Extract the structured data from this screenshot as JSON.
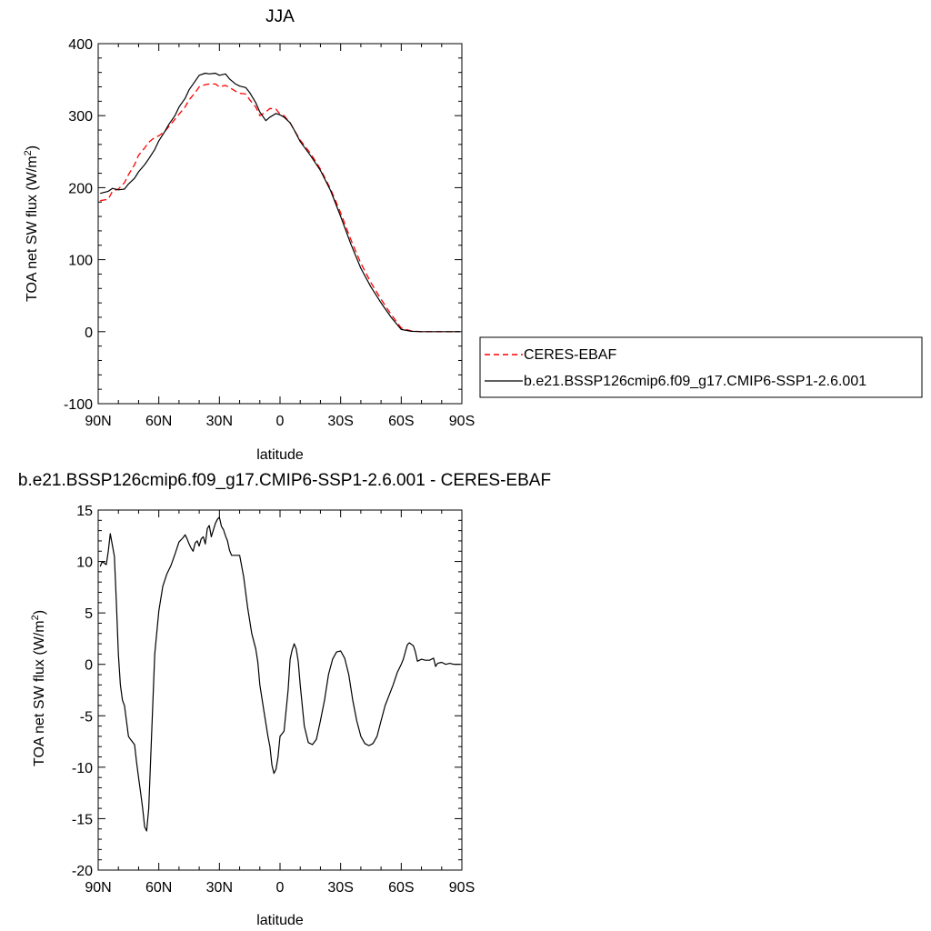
{
  "chart_data": [
    {
      "type": "line",
      "title": "JJA",
      "xlabel": "latitude",
      "ylabel": "TOA net SW flux (W/m",
      "ylabel_sup": "2",
      "ylabel_close": ")",
      "xlim": [
        90,
        -90
      ],
      "ylim": [
        -100,
        400
      ],
      "x_ticks": [
        90,
        60,
        30,
        0,
        -30,
        -60,
        -90
      ],
      "x_tick_labels": [
        "90N",
        "60N",
        "30N",
        "0",
        "30S",
        "60S",
        "90S"
      ],
      "y_ticks": [
        -100,
        0,
        100,
        200,
        300,
        400
      ],
      "y_tick_labels": [
        "-100",
        "0",
        "100",
        "200",
        "300",
        "400"
      ],
      "legend_position": "right",
      "series": [
        {
          "name": "CERES-EBAF",
          "color": "#ff0000",
          "dash": true,
          "x": [
            89,
            85,
            83,
            80,
            77,
            75,
            72,
            70,
            67,
            65,
            62,
            60,
            57,
            55,
            52,
            50,
            47,
            45,
            42,
            40,
            37,
            35,
            32,
            30,
            27,
            25,
            22,
            20,
            17,
            15,
            12,
            10,
            7,
            5,
            2,
            0,
            -2,
            -5,
            -7,
            -10,
            -15,
            -20,
            -25,
            -30,
            -35,
            -40,
            -45,
            -50,
            -55,
            -60,
            -65,
            -70,
            -75,
            -80,
            -85,
            -89
          ],
          "y": [
            182,
            184,
            195,
            198,
            207,
            218,
            232,
            245,
            255,
            263,
            270,
            272,
            278,
            285,
            295,
            302,
            312,
            322,
            332,
            340,
            343,
            344,
            344,
            340,
            342,
            339,
            334,
            331,
            330,
            322,
            312,
            300,
            305,
            310,
            309,
            302,
            300,
            290,
            280,
            266,
            248,
            226,
            198,
            165,
            128,
            95,
            68,
            45,
            24,
            5,
            1,
            0,
            0,
            0,
            0,
            0
          ]
        },
        {
          "name": "b.e21.BSSP126cmip6.f09_g17.CMIP6-SSP1-2.6.001",
          "color": "#000000",
          "dash": false,
          "x": [
            89,
            85,
            83,
            80,
            77,
            75,
            72,
            70,
            67,
            65,
            62,
            60,
            57,
            55,
            52,
            50,
            47,
            45,
            42,
            40,
            37,
            35,
            32,
            30,
            27,
            25,
            22,
            20,
            17,
            15,
            12,
            10,
            7,
            5,
            2,
            0,
            -2,
            -5,
            -7,
            -10,
            -15,
            -20,
            -25,
            -30,
            -35,
            -40,
            -45,
            -50,
            -55,
            -60,
            -65,
            -70,
            -75,
            -80,
            -85,
            -89
          ],
          "y": [
            192,
            195,
            199,
            197,
            198,
            205,
            213,
            222,
            232,
            240,
            253,
            265,
            278,
            288,
            300,
            312,
            324,
            336,
            348,
            356,
            359,
            358,
            359,
            356,
            358,
            351,
            344,
            341,
            339,
            332,
            318,
            305,
            293,
            298,
            303,
            301,
            298,
            290,
            280,
            264,
            245,
            224,
            196,
            160,
            122,
            88,
            62,
            40,
            20,
            3,
            0.5,
            0,
            0,
            0,
            0,
            0
          ]
        }
      ]
    },
    {
      "type": "line",
      "title": "b.e21.BSSP126cmip6.f09_g17.CMIP6-SSP1-2.6.001 - CERES-EBAF",
      "xlabel": "latitude",
      "ylabel": "TOA net SW flux (W/m",
      "ylabel_sup": "2",
      "ylabel_close": ")",
      "xlim": [
        90,
        -90
      ],
      "ylim": [
        -20,
        15
      ],
      "x_ticks": [
        90,
        60,
        30,
        0,
        -30,
        -60,
        -90
      ],
      "x_tick_labels": [
        "90N",
        "60N",
        "30N",
        "0",
        "30S",
        "60S",
        "90S"
      ],
      "y_ticks": [
        -20,
        -15,
        -10,
        -5,
        0,
        5,
        10,
        15
      ],
      "y_tick_labels": [
        "-20",
        "-15",
        "-10",
        "-5",
        "0",
        "5",
        "10",
        "15"
      ],
      "series": [
        {
          "color": "#000000",
          "x": [
            89,
            88,
            86,
            85,
            84,
            82,
            81,
            80,
            79,
            78,
            77,
            76,
            75,
            74,
            72,
            71,
            70,
            69,
            68,
            67,
            66,
            65,
            64,
            63,
            62,
            60,
            58,
            56,
            54,
            52,
            50,
            48,
            47,
            46,
            45,
            44,
            43,
            42,
            41,
            40,
            39,
            38,
            37,
            36,
            35,
            34,
            32,
            31,
            30,
            29,
            28,
            27,
            26,
            25,
            24,
            22,
            20,
            18,
            16,
            14,
            12,
            11,
            10,
            8,
            6,
            5,
            4,
            3,
            2,
            1,
            0,
            -2,
            -4,
            -5,
            -6,
            -7,
            -8,
            -9,
            -10,
            -12,
            -14,
            -16,
            -18,
            -20,
            -22,
            -24,
            -26,
            -28,
            -30,
            -32,
            -34,
            -36,
            -38,
            -40,
            -42,
            -44,
            -46,
            -48,
            -50,
            -52,
            -54,
            -56,
            -58,
            -60,
            -61,
            -62,
            -63,
            -64,
            -66,
            -67,
            -68,
            -70,
            -72,
            -74,
            -76,
            -77,
            -78,
            -80,
            -82,
            -84,
            -86,
            -88,
            -89
          ],
          "y": [
            9.5,
            10,
            9.7,
            11,
            12.7,
            10.5,
            6,
            1,
            -2,
            -3.5,
            -4,
            -5.5,
            -7,
            -7.3,
            -7.8,
            -9.5,
            -11,
            -12.5,
            -14,
            -15.8,
            -16.2,
            -14,
            -9,
            -4,
            1,
            5.2,
            7.6,
            8.8,
            9.6,
            10.7,
            11.9,
            12.3,
            12.6,
            12.2,
            11.7,
            11.3,
            11,
            11.8,
            12,
            11.5,
            12.2,
            12.4,
            11.7,
            13.2,
            13.5,
            12.4,
            13.7,
            14.1,
            14.3,
            13.4,
            13.1,
            12.5,
            12,
            11.1,
            10.6,
            10.6,
            10.6,
            8.5,
            5.5,
            3,
            1.5,
            0.2,
            -2,
            -4.5,
            -7,
            -8,
            -9.8,
            -10.6,
            -10.2,
            -9,
            -7,
            -6.5,
            -2.5,
            0.5,
            1.4,
            2,
            1.5,
            0.3,
            -2,
            -6,
            -7.6,
            -7.8,
            -7.3,
            -5.5,
            -3.5,
            -1,
            0.5,
            1.2,
            1.3,
            0.6,
            -1,
            -3.5,
            -5.5,
            -7,
            -7.7,
            -7.9,
            -7.7,
            -7,
            -5.5,
            -4,
            -3,
            -2,
            -0.8,
            0,
            0.5,
            1.2,
            1.9,
            2.1,
            1.8,
            1.2,
            0.3,
            0.5,
            0.4,
            0.4,
            0.6,
            -0.2,
            0.1,
            0.2,
            0,
            0.1,
            0,
            0,
            0
          ]
        }
      ]
    }
  ]
}
